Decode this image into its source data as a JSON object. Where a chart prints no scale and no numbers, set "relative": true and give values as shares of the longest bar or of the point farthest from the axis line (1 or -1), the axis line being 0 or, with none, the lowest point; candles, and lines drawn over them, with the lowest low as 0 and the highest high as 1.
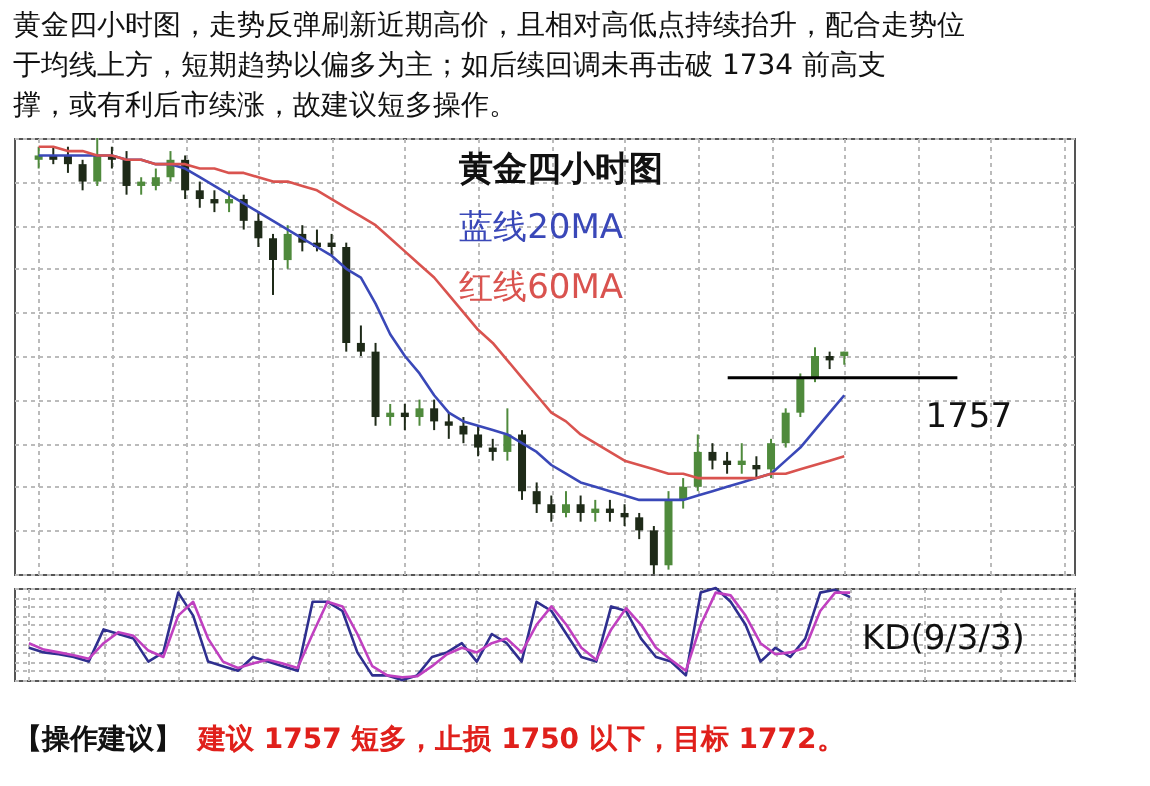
{
  "chart_data": [
    {
      "type": "candlestick",
      "relative": true,
      "title": "黄金四小时图，走势反弹刷新近期高价，且相对高低点持续抬升，配合走势位于均线上方，短期趋势以偏多为主；如后续回调未再击破 1734 前高支撑，或有利后市续涨，故建议短多操作。",
      "grid": true,
      "colors": [
        "#4f8a3c",
        "#1e2a18",
        "#1e2a18",
        "#1e2a18",
        "#4f8a3c",
        "#1e2a18",
        "#1e2a18",
        "#4f8a3c",
        "#4f8a3c",
        "#4f8a3c",
        "#1e2a18",
        "#1e2a18",
        "#1e2a18",
        "#4f8a3c",
        "#1e2a18",
        "#1e2a18",
        "#1e2a18",
        "#4f8a3c",
        "#1e2a18",
        "#1e2a18",
        "#1e2a18",
        "#1e2a18",
        "#1e2a18",
        "#1e2a18",
        "#4f8a3c",
        "#1e2a18",
        "#4f8a3c",
        "#1e2a18",
        "#1e2a18",
        "#1e2a18",
        "#1e2a18",
        "#1e2a18",
        "#4f8a3c",
        "#1e2a18",
        "#1e2a18",
        "#1e2a18",
        "#4f8a3c",
        "#1e2a18",
        "#4f8a3c",
        "#1e2a18",
        "#1e2a18",
        "#1e2a18",
        "#1e2a18",
        "#4f8a3c",
        "#4f8a3c",
        "#4f8a3c",
        "#1e2a18",
        "#1e2a18",
        "#4f8a3c",
        "#1e2a18",
        "#4f8a3c",
        "#4f8a3c",
        "#4f8a3c",
        "#4f8a3c",
        "#1e2a18",
        "#4f8a3c"
      ],
      "categories": [
        null,
        null,
        null,
        null,
        null,
        null,
        null,
        null,
        null,
        null,
        null,
        null,
        null,
        null,
        null,
        null,
        null,
        null,
        null,
        null,
        null,
        null,
        null,
        null,
        null,
        null,
        null,
        null,
        null,
        null,
        null,
        null,
        null,
        null,
        null,
        null,
        null,
        null,
        null,
        null,
        null,
        null,
        null,
        null,
        null,
        null,
        null,
        null,
        null,
        null,
        null,
        null,
        null,
        null,
        null,
        null
      ],
      "ohlc": [
        [
          0.95,
          0.98,
          0.93,
          0.96
        ],
        [
          0.96,
          0.98,
          0.94,
          0.95
        ],
        [
          0.96,
          0.98,
          0.92,
          0.94
        ],
        [
          0.94,
          0.95,
          0.88,
          0.9
        ],
        [
          0.9,
          1.0,
          0.89,
          0.96
        ],
        [
          0.96,
          0.98,
          0.93,
          0.95
        ],
        [
          0.95,
          0.97,
          0.87,
          0.89
        ],
        [
          0.89,
          0.91,
          0.87,
          0.9
        ],
        [
          0.89,
          0.93,
          0.88,
          0.91
        ],
        [
          0.91,
          0.97,
          0.9,
          0.95
        ],
        [
          0.95,
          0.96,
          0.86,
          0.88
        ],
        [
          0.88,
          0.9,
          0.84,
          0.86
        ],
        [
          0.86,
          0.88,
          0.83,
          0.85
        ],
        [
          0.85,
          0.88,
          0.83,
          0.86
        ],
        [
          0.86,
          0.87,
          0.79,
          0.81
        ],
        [
          0.81,
          0.83,
          0.75,
          0.77
        ],
        [
          0.77,
          0.78,
          0.64,
          0.72
        ],
        [
          0.72,
          0.8,
          0.7,
          0.78
        ],
        [
          0.78,
          0.8,
          0.74,
          0.76
        ],
        [
          0.76,
          0.79,
          0.74,
          0.75
        ],
        [
          0.76,
          0.78,
          0.73,
          0.75
        ],
        [
          0.75,
          0.76,
          0.51,
          0.53
        ],
        [
          0.53,
          0.57,
          0.5,
          0.51
        ],
        [
          0.51,
          0.53,
          0.34,
          0.36
        ],
        [
          0.36,
          0.39,
          0.34,
          0.37
        ],
        [
          0.37,
          0.39,
          0.33,
          0.36
        ],
        [
          0.36,
          0.4,
          0.34,
          0.38
        ],
        [
          0.38,
          0.4,
          0.33,
          0.35
        ],
        [
          0.35,
          0.37,
          0.31,
          0.34
        ],
        [
          0.34,
          0.36,
          0.3,
          0.32
        ],
        [
          0.32,
          0.34,
          0.27,
          0.29
        ],
        [
          0.29,
          0.31,
          0.26,
          0.28
        ],
        [
          0.28,
          0.38,
          0.26,
          0.32
        ],
        [
          0.32,
          0.33,
          0.17,
          0.19
        ],
        [
          0.19,
          0.21,
          0.14,
          0.16
        ],
        [
          0.16,
          0.18,
          0.12,
          0.14
        ],
        [
          0.14,
          0.19,
          0.13,
          0.16
        ],
        [
          0.16,
          0.18,
          0.12,
          0.14
        ],
        [
          0.14,
          0.17,
          0.12,
          0.15
        ],
        [
          0.15,
          0.17,
          0.12,
          0.14
        ],
        [
          0.14,
          0.16,
          0.11,
          0.13
        ],
        [
          0.13,
          0.14,
          0.08,
          0.1
        ],
        [
          0.1,
          0.11,
          0.0,
          0.02
        ],
        [
          0.02,
          0.19,
          0.01,
          0.17
        ],
        [
          0.17,
          0.22,
          0.15,
          0.2
        ],
        [
          0.2,
          0.32,
          0.19,
          0.28
        ],
        [
          0.28,
          0.3,
          0.24,
          0.26
        ],
        [
          0.26,
          0.28,
          0.23,
          0.25
        ],
        [
          0.25,
          0.3,
          0.23,
          0.26
        ],
        [
          0.25,
          0.27,
          0.22,
          0.24
        ],
        [
          0.24,
          0.31,
          0.22,
          0.3
        ],
        [
          0.3,
          0.38,
          0.29,
          0.37
        ],
        [
          0.37,
          0.46,
          0.36,
          0.45
        ],
        [
          0.45,
          0.52,
          0.44,
          0.5
        ],
        [
          0.5,
          0.51,
          0.47,
          0.49
        ],
        [
          0.5,
          0.51,
          0.48,
          0.51
        ]
      ],
      "series": [
        {
          "type": "line",
          "name": "蓝线20MA",
          "color": "#3a48b8",
          "values": [
            0.96,
            0.96,
            0.96,
            0.96,
            0.96,
            0.96,
            0.95,
            0.95,
            0.94,
            0.94,
            0.93,
            0.91,
            0.89,
            0.87,
            0.85,
            0.83,
            0.81,
            0.79,
            0.77,
            0.75,
            0.73,
            0.7,
            0.68,
            0.62,
            0.55,
            0.5,
            0.46,
            0.41,
            0.37,
            0.35,
            0.34,
            0.33,
            0.32,
            0.3,
            0.28,
            0.25,
            0.23,
            0.21,
            0.2,
            0.19,
            0.18,
            0.17,
            0.17,
            0.17,
            0.17,
            0.18,
            0.19,
            0.2,
            0.21,
            0.22,
            0.23,
            0.26,
            0.29,
            0.33,
            0.37,
            0.41
          ]
        },
        {
          "type": "line",
          "name": "红线60MA",
          "color": "#d9534f",
          "values": [
            0.98,
            0.98,
            0.97,
            0.97,
            0.96,
            0.96,
            0.95,
            0.95,
            0.94,
            0.94,
            0.94,
            0.93,
            0.93,
            0.92,
            0.92,
            0.91,
            0.9,
            0.9,
            0.89,
            0.88,
            0.86,
            0.84,
            0.82,
            0.8,
            0.77,
            0.74,
            0.71,
            0.68,
            0.64,
            0.6,
            0.56,
            0.53,
            0.49,
            0.45,
            0.41,
            0.37,
            0.35,
            0.32,
            0.3,
            0.28,
            0.26,
            0.25,
            0.24,
            0.23,
            0.23,
            0.22,
            0.22,
            0.22,
            0.22,
            0.22,
            0.23,
            0.23,
            0.24,
            0.25,
            0.26,
            0.27
          ]
        }
      ],
      "ref_lines": [
        {
          "axis": "y",
          "value": 0.45,
          "color": "#000000"
        }
      ],
      "annotations": [
        "黄金四小时图",
        "1757"
      ]
    },
    {
      "type": "line",
      "relative": true,
      "grid": true,
      "categories": [
        null,
        null,
        null,
        null,
        null,
        null,
        null,
        null,
        null,
        null,
        null,
        null,
        null,
        null,
        null,
        null,
        null,
        null,
        null,
        null,
        null,
        null,
        null,
        null,
        null,
        null,
        null,
        null,
        null,
        null,
        null,
        null,
        null,
        null,
        null,
        null,
        null,
        null,
        null,
        null,
        null,
        null,
        null,
        null,
        null,
        null,
        null,
        null,
        null,
        null,
        null,
        null,
        null,
        null,
        null,
        null
      ],
      "series": [
        {
          "color": "#2f2f8f",
          "values": [
            0.35,
            0.3,
            0.28,
            0.25,
            0.2,
            0.55,
            0.5,
            0.45,
            0.2,
            0.3,
            0.95,
            0.7,
            0.2,
            0.15,
            0.1,
            0.25,
            0.2,
            0.15,
            0.1,
            0.85,
            0.85,
            0.75,
            0.3,
            0.05,
            0.05,
            0,
            0.05,
            0.25,
            0.3,
            0.4,
            0.2,
            0.5,
            0.4,
            0.2,
            0.85,
            0.75,
            0.5,
            0.25,
            0.2,
            0.8,
            0.75,
            0.45,
            0.25,
            0.2,
            0.05,
            0.95,
            1.0,
            0.85,
            0.6,
            0.2,
            0.35,
            0.25,
            0.45,
            0.95,
            0.98,
            0.9
          ]
        },
        {
          "color": "#c040c0",
          "values": [
            0.4,
            0.33,
            0.3,
            0.27,
            0.23,
            0.4,
            0.52,
            0.48,
            0.32,
            0.25,
            0.7,
            0.85,
            0.45,
            0.2,
            0.13,
            0.18,
            0.22,
            0.18,
            0.13,
            0.5,
            0.85,
            0.8,
            0.5,
            0.15,
            0.05,
            0.03,
            0.04,
            0.15,
            0.28,
            0.35,
            0.3,
            0.4,
            0.45,
            0.3,
            0.6,
            0.8,
            0.6,
            0.35,
            0.22,
            0.55,
            0.78,
            0.6,
            0.35,
            0.22,
            0.1,
            0.6,
            0.95,
            0.92,
            0.7,
            0.4,
            0.28,
            0.3,
            0.35,
            0.75,
            0.95,
            0.95
          ]
        }
      ],
      "annotations": [
        "KD(9/3/3)",
        "【操作建议】",
        "建议 1757 短多，止损 1750 以下，目标 1772。"
      ]
    }
  ]
}
